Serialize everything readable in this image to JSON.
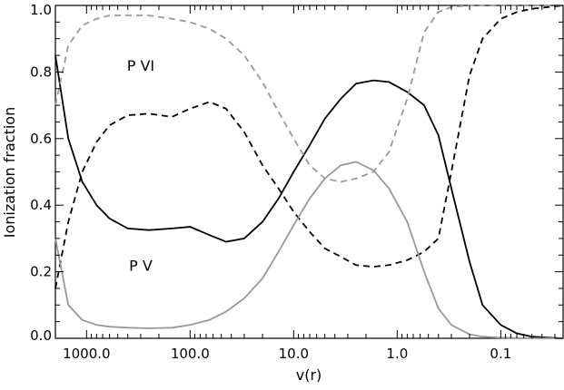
{
  "chart_data": {
    "type": "line",
    "title": "",
    "xlabel": "v(r)",
    "ylabel": "Ionization fraction",
    "x_scale": "log",
    "x_reversed": true,
    "xlim": [
      2000,
      0.025
    ],
    "ylim": [
      0,
      1
    ],
    "x_ticks": [
      1000,
      100,
      10,
      1,
      0.1
    ],
    "x_tick_labels": [
      "1000.0",
      "100.0",
      "10.0",
      "1.0",
      "0.1"
    ],
    "y_ticks": [
      0,
      0.2,
      0.4,
      0.6,
      0.8,
      1.0
    ],
    "y_tick_labels": [
      "0.0",
      "0.2",
      "0.4",
      "0.6",
      "0.8",
      "1.0"
    ],
    "grid": false,
    "annotations": [
      {
        "text": "P VI",
        "x": 300,
        "y": 0.82
      },
      {
        "text": "P V",
        "x": 300,
        "y": 0.22
      }
    ],
    "series": [
      {
        "color": "#000000",
        "dash": "solid",
        "x": [
          2000,
          1500,
          1100,
          800,
          600,
          400,
          250,
          150,
          100,
          65,
          45,
          30,
          20,
          14,
          10,
          7,
          5,
          3.5,
          2.5,
          1.7,
          1.2,
          0.8,
          0.55,
          0.4,
          0.3,
          0.2,
          0.15,
          0.1,
          0.07,
          0.05,
          0.035,
          0.025
        ],
        "y": [
          0.85,
          0.6,
          0.47,
          0.4,
          0.36,
          0.33,
          0.325,
          0.33,
          0.335,
          0.31,
          0.29,
          0.3,
          0.35,
          0.42,
          0.5,
          0.58,
          0.66,
          0.72,
          0.765,
          0.775,
          0.77,
          0.74,
          0.7,
          0.61,
          0.45,
          0.23,
          0.1,
          0.04,
          0.015,
          0.005,
          0.002,
          0.0
        ]
      },
      {
        "color": "#000000",
        "dash": "dashed",
        "x": [
          2000,
          1500,
          1100,
          800,
          600,
          400,
          250,
          150,
          100,
          65,
          45,
          30,
          20,
          14,
          10,
          7,
          5,
          3.5,
          2.5,
          1.7,
          1.2,
          0.8,
          0.55,
          0.4,
          0.3,
          0.2,
          0.15,
          0.1,
          0.07,
          0.05,
          0.035,
          0.025
        ],
        "y": [
          0.15,
          0.35,
          0.5,
          0.59,
          0.64,
          0.67,
          0.675,
          0.665,
          0.69,
          0.71,
          0.69,
          0.62,
          0.52,
          0.45,
          0.38,
          0.32,
          0.27,
          0.245,
          0.22,
          0.215,
          0.22,
          0.235,
          0.26,
          0.3,
          0.5,
          0.79,
          0.9,
          0.96,
          0.98,
          0.99,
          0.995,
          1.0
        ]
      },
      {
        "color": "#999999",
        "dash": "solid",
        "x": [
          2000,
          1500,
          1100,
          800,
          600,
          400,
          250,
          150,
          100,
          65,
          45,
          30,
          20,
          14,
          10,
          7,
          5,
          3.5,
          2.5,
          1.7,
          1.2,
          0.8,
          0.55,
          0.4,
          0.3,
          0.2,
          0.15,
          0.1,
          0.07,
          0.05,
          0.035,
          0.025
        ],
        "y": [
          0.3,
          0.1,
          0.055,
          0.04,
          0.035,
          0.032,
          0.03,
          0.032,
          0.04,
          0.055,
          0.08,
          0.12,
          0.18,
          0.26,
          0.34,
          0.42,
          0.48,
          0.52,
          0.53,
          0.505,
          0.45,
          0.35,
          0.2,
          0.09,
          0.04,
          0.012,
          0.005,
          0.002,
          0.001,
          0.0,
          0.0,
          0.0
        ]
      },
      {
        "color": "#999999",
        "dash": "dashed",
        "x": [
          2000,
          1500,
          1100,
          800,
          600,
          400,
          250,
          150,
          100,
          65,
          45,
          30,
          20,
          14,
          10,
          7,
          5,
          3.5,
          2.5,
          1.7,
          1.2,
          0.8,
          0.55,
          0.4,
          0.3,
          0.2,
          0.15,
          0.1,
          0.07,
          0.05,
          0.035,
          0.025
        ],
        "y": [
          0.7,
          0.88,
          0.94,
          0.96,
          0.97,
          0.97,
          0.97,
          0.96,
          0.95,
          0.93,
          0.9,
          0.85,
          0.77,
          0.68,
          0.6,
          0.52,
          0.48,
          0.47,
          0.48,
          0.5,
          0.56,
          0.72,
          0.92,
          0.98,
          0.995,
          1.0,
          1.0,
          1.0,
          1.0,
          1.0,
          1.0,
          1.0
        ]
      }
    ]
  }
}
